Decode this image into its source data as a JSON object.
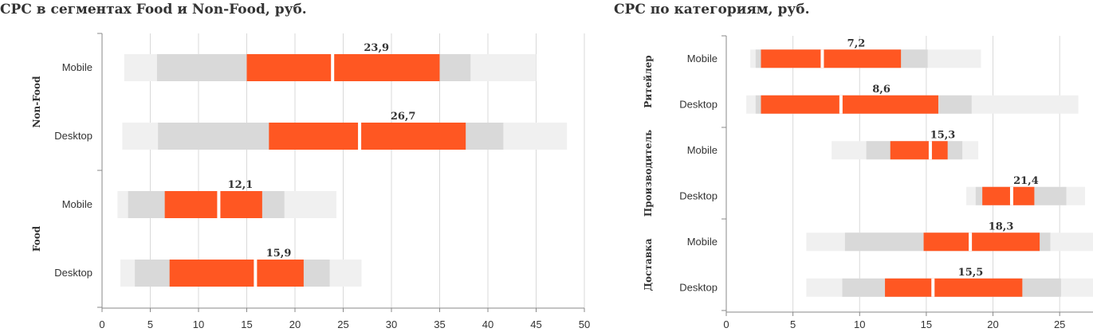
{
  "chart_data": [
    {
      "type": "bar",
      "title": "CPC в сегментах Food и Non-Food, руб.",
      "xlim": [
        0,
        50
      ],
      "xticks": [
        0,
        5,
        10,
        15,
        20,
        25,
        30,
        35,
        40,
        45,
        50
      ],
      "grid": true,
      "colors": {
        "outer": "#f0f0f0",
        "inner": "#d9d9d9",
        "core": "#ff5722"
      },
      "groups": [
        {
          "name": "Non-Food",
          "rows": [
            {
              "category": "Mobile",
              "outer": [
                2.3,
                45
              ],
              "inner": [
                5.7,
                38.2
              ],
              "core": [
                15,
                35
              ],
              "median": 23.9,
              "label": "23,9"
            },
            {
              "category": "Desktop",
              "outer": [
                2.1,
                48.2
              ],
              "inner": [
                5.8,
                41.6
              ],
              "core": [
                17.3,
                37.7
              ],
              "median": 26.7,
              "label": "26,7"
            }
          ]
        },
        {
          "name": "Food",
          "rows": [
            {
              "category": "Mobile",
              "outer": [
                1.6,
                24.3
              ],
              "inner": [
                2.7,
                18.9
              ],
              "core": [
                6.5,
                16.6
              ],
              "median": 12.1,
              "label": "12,1"
            },
            {
              "category": "Desktop",
              "outer": [
                1.9,
                26.9
              ],
              "inner": [
                3.4,
                23.6
              ],
              "core": [
                7.0,
                20.9
              ],
              "median": 15.9,
              "label": "15,9"
            }
          ]
        }
      ]
    },
    {
      "type": "bar",
      "title": "CPC по категориям, руб.",
      "xlim": [
        0,
        27.5
      ],
      "xticks": [
        0,
        5,
        10,
        15,
        20,
        25
      ],
      "grid": true,
      "colors": {
        "outer": "#f0f0f0",
        "inner": "#d9d9d9",
        "core": "#ff5722"
      },
      "groups": [
        {
          "name": "Ритейлер",
          "rows": [
            {
              "category": "Mobile",
              "outer": [
                1.8,
                19.1
              ],
              "inner": [
                2.2,
                15.1
              ],
              "core": [
                2.6,
                13.1
              ],
              "median": 7.2,
              "label": "7,2"
            },
            {
              "category": "Desktop",
              "outer": [
                1.5,
                26.4
              ],
              "inner": [
                2.2,
                18.4
              ],
              "core": [
                2.6,
                15.9
              ],
              "median": 8.6,
              "label": "8,6"
            }
          ]
        },
        {
          "name": "Производитель",
          "rows": [
            {
              "category": "Mobile",
              "outer": [
                7.9,
                18.9
              ],
              "inner": [
                10.5,
                17.7
              ],
              "core": [
                12.3,
                16.6
              ],
              "median": 15.3,
              "label": "15,3"
            },
            {
              "category": "Desktop",
              "outer": [
                18.0,
                26.9
              ],
              "inner": [
                18.7,
                25.5
              ],
              "core": [
                19.2,
                23.1
              ],
              "median": 21.4,
              "label": "21,4"
            }
          ]
        },
        {
          "name": "Доставка",
          "rows": [
            {
              "category": "Mobile",
              "outer": [
                6.0,
                27.5
              ],
              "inner": [
                8.9,
                24.3
              ],
              "core": [
                14.8,
                23.5
              ],
              "median": 18.3,
              "label": "18,3"
            },
            {
              "category": "Desktop",
              "outer": [
                6.0,
                27.5
              ],
              "inner": [
                8.7,
                25.1
              ],
              "core": [
                11.9,
                22.2
              ],
              "median": 15.5,
              "label": "15,5"
            }
          ]
        }
      ]
    }
  ]
}
